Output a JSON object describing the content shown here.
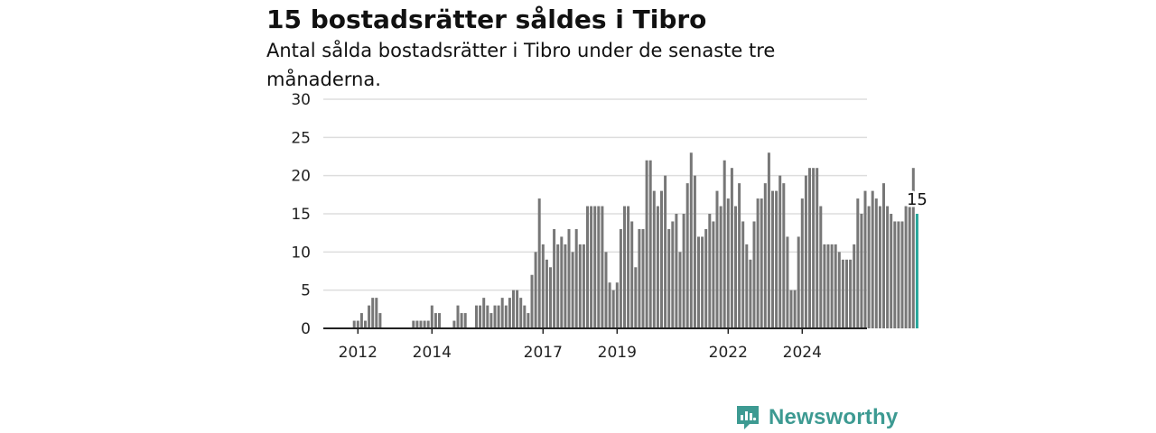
{
  "title": "15 bostadsrätter såldes i Tibro",
  "subtitle": "Antal sålda bostadsrätter i Tibro under de senaste tre månaderna.",
  "brand": {
    "name": "Newsworthy",
    "color": "#3d9a92",
    "icon": "newsworthy-logo-icon"
  },
  "colors": {
    "bar": "#777777",
    "highlight": "#26a69a",
    "grid": "#dddddd",
    "axis": "#222222"
  },
  "chart_data": {
    "type": "bar",
    "title": "15 bostadsrätter såldes i Tibro",
    "xlabel": "",
    "ylabel": "",
    "ylim": [
      0,
      30
    ],
    "yticks": [
      0,
      5,
      10,
      15,
      20,
      25,
      30
    ],
    "xticks": [
      "2012",
      "2014",
      "2017",
      "2019",
      "2022",
      "2024"
    ],
    "xtick_positions": [
      8,
      28,
      58,
      78,
      108,
      128
    ],
    "grid": true,
    "highlight_label": "15",
    "values": [
      0,
      0,
      0,
      0,
      0,
      0,
      0,
      1,
      1,
      2,
      1,
      3,
      4,
      4,
      2,
      0,
      0,
      0,
      0,
      0,
      0,
      0,
      0,
      1,
      1,
      1,
      1,
      1,
      3,
      2,
      2,
      0,
      0,
      0,
      1,
      3,
      2,
      2,
      0,
      0,
      3,
      3,
      4,
      3,
      2,
      3,
      3,
      4,
      3,
      4,
      5,
      5,
      4,
      3,
      2,
      7,
      10,
      17,
      11,
      9,
      8,
      13,
      11,
      12,
      11,
      13,
      10,
      13,
      11,
      11,
      16,
      16,
      16,
      16,
      16,
      10,
      6,
      5,
      6,
      13,
      16,
      16,
      14,
      8,
      13,
      13,
      22,
      22,
      18,
      16,
      18,
      20,
      13,
      14,
      15,
      10,
      15,
      19,
      23,
      20,
      12,
      12,
      13,
      15,
      14,
      18,
      16,
      22,
      17,
      21,
      16,
      19,
      14,
      11,
      9,
      14,
      17,
      17,
      19,
      23,
      18,
      18,
      20,
      19,
      12,
      5,
      5,
      12,
      17,
      20,
      21,
      21,
      21,
      16,
      11,
      11,
      11,
      11,
      10,
      9,
      9,
      9,
      11,
      17,
      15,
      18,
      16,
      18,
      17,
      16,
      19,
      16,
      15,
      14,
      14,
      14,
      16,
      16,
      21,
      15
    ]
  }
}
